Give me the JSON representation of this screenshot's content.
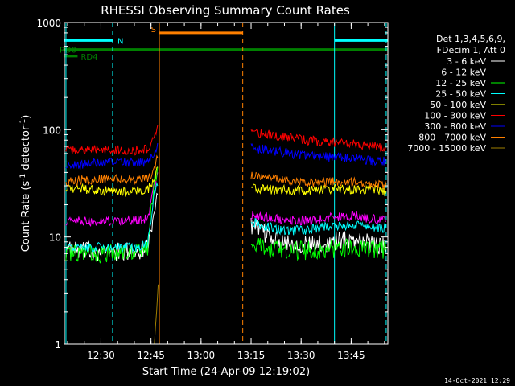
{
  "chart_data": {
    "type": "line",
    "title": "RHESSI Observing Summary Count Rates",
    "xlabel": "Start Time (24-Apr-09 12:19:02)",
    "ylabel_main": "Count Rate (s",
    "ylabel_sup1": "-1",
    "ylabel_mid": " detector",
    "ylabel_sup2": "-1",
    "ylabel_end": ")",
    "y_log": true,
    "ylim": [
      1,
      1000
    ],
    "y_ticks": [
      {
        "value": 1,
        "label": "1"
      },
      {
        "value": 10,
        "label": "10"
      },
      {
        "value": 100,
        "label": "100"
      },
      {
        "value": 1000,
        "label": "1000"
      }
    ],
    "xlim": [
      "12:19:02",
      "13:56:00"
    ],
    "x_ticks": [
      {
        "value": "12:30",
        "label": "12:30"
      },
      {
        "value": "12:45",
        "label": "12:45"
      },
      {
        "value": "13:00",
        "label": "13:00"
      },
      {
        "value": "13:15",
        "label": "13:15"
      },
      {
        "value": "13:30",
        "label": "13:30"
      },
      {
        "value": "13:45",
        "label": "13:45"
      }
    ],
    "legend_title": [
      "Det 1,3,4,5,6,9,",
      "FDecim 1, Att 0"
    ],
    "legend_position": "right",
    "series": [
      {
        "name": "3 - 6 keV",
        "color": "#ffffff",
        "segments": [
          {
            "x": [
              "12:19:30",
              "12:30:00",
              "12:40:00",
              "12:44:00",
              "12:46:00",
              "12:47:00"
            ],
            "y": [
              7.5,
              7.2,
              7.3,
              8.0,
              18,
              25
            ]
          },
          {
            "x": [
              "13:15:00",
              "13:18:00",
              "13:22:00",
              "13:27:00",
              "13:32:00",
              "13:36:00",
              "13:40:00",
              "13:45:00",
              "13:50:00",
              "13:55:30"
            ],
            "y": [
              13,
              11,
              9.8,
              8.8,
              8.4,
              8.5,
              9.2,
              9.5,
              9.0,
              8.0
            ]
          }
        ]
      },
      {
        "name": "6 - 12 keV",
        "color": "#ff00ff",
        "segments": [
          {
            "x": [
              "12:19:30",
              "12:30:00",
              "12:40:00",
              "12:44:00",
              "12:46:00",
              "12:47:00"
            ],
            "y": [
              14,
              14,
              14.2,
              15,
              30,
              40
            ]
          },
          {
            "x": [
              "13:15:00",
              "13:18:00",
              "13:22:00",
              "13:27:00",
              "13:32:00",
              "13:36:00",
              "13:40:00",
              "13:45:00",
              "13:50:00",
              "13:55:30"
            ],
            "y": [
              16,
              15.5,
              15,
              14.5,
              14.2,
              14.5,
              15.5,
              15.8,
              15,
              14
            ]
          }
        ]
      },
      {
        "name": "12 - 25 keV",
        "color": "#00ff00",
        "segments": [
          {
            "x": [
              "12:19:30",
              "12:30:00",
              "12:40:00",
              "12:44:00",
              "12:46:00",
              "12:47:00"
            ],
            "y": [
              7.0,
              7.0,
              7.1,
              8.0,
              35,
              45
            ]
          },
          {
            "x": [
              "13:15:00",
              "13:18:00",
              "13:22:00",
              "13:27:00",
              "13:32:00",
              "13:36:00",
              "13:40:00",
              "13:45:00",
              "13:50:00",
              "13:55:30"
            ],
            "y": [
              9.5,
              8.0,
              7.6,
              7.5,
              7.5,
              7.6,
              7.8,
              8.0,
              7.9,
              7.6
            ]
          }
        ]
      },
      {
        "name": "25 - 50 keV",
        "color": "#00ffff",
        "segments": [
          {
            "x": [
              "12:19:30",
              "12:30:00",
              "12:40:00",
              "12:44:00",
              "12:46:00",
              "12:47:00"
            ],
            "y": [
              8.0,
              8.0,
              8.0,
              8.5,
              25,
              30
            ]
          },
          {
            "x": [
              "13:15:00",
              "13:18:00",
              "13:22:00",
              "13:27:00",
              "13:32:00",
              "13:36:00",
              "13:40:00",
              "13:45:00",
              "13:50:00",
              "13:55:30"
            ],
            "y": [
              14,
              13,
              12,
              11.5,
              11.6,
              12.5,
              13,
              12.8,
              12.4,
              12.0
            ]
          }
        ]
      },
      {
        "name": "50 - 100 keV",
        "color": "#ffff00",
        "segments": [
          {
            "x": [
              "12:19:30",
              "12:30:00",
              "12:40:00",
              "12:44:00",
              "12:46:00",
              "12:47:00"
            ],
            "y": [
              29,
              27,
              26,
              27.5,
              35,
              45
            ]
          },
          {
            "x": [
              "13:15:00",
              "13:18:00",
              "13:22:00",
              "13:27:00",
              "13:32:00",
              "13:36:00",
              "13:40:00",
              "13:45:00",
              "13:50:00",
              "13:55:30"
            ],
            "y": [
              29,
              28,
              27.5,
              27,
              27,
              27.5,
              28,
              28,
              27.5,
              27
            ]
          }
        ]
      },
      {
        "name": "100 - 300 keV",
        "color": "#ff0000",
        "segments": [
          {
            "x": [
              "12:19:30",
              "12:30:00",
              "12:40:00",
              "12:44:00",
              "12:46:00",
              "12:47:00"
            ],
            "y": [
              65,
              65,
              64,
              66,
              80,
              110
            ]
          },
          {
            "x": [
              "13:15:00",
              "13:18:00",
              "13:22:00",
              "13:27:00",
              "13:32:00",
              "13:36:00",
              "13:40:00",
              "13:45:00",
              "13:50:00",
              "13:55:30"
            ],
            "y": [
              95,
              92,
              88,
              84,
              80,
              77,
              76,
              74,
              72,
              68
            ]
          }
        ]
      },
      {
        "name": "300 - 800 keV",
        "color": "#0000ff",
        "segments": [
          {
            "x": [
              "12:19:30",
              "12:30:00",
              "12:40:00",
              "12:44:00",
              "12:46:00",
              "12:47:00"
            ],
            "y": [
              45,
              50,
              49,
              50,
              60,
              75
            ]
          },
          {
            "x": [
              "13:15:00",
              "13:18:00",
              "13:22:00",
              "13:27:00",
              "13:32:00",
              "13:36:00",
              "13:40:00",
              "13:45:00",
              "13:50:00",
              "13:55:30"
            ],
            "y": [
              68,
              66,
              63,
              60,
              57,
              56,
              55,
              54,
              52,
              50
            ]
          }
        ]
      },
      {
        "name": "800 - 7000 keV",
        "color": "#ff8000",
        "segments": [
          {
            "x": [
              "12:19:30",
              "12:30:00",
              "12:40:00",
              "12:44:00",
              "12:46:00",
              "12:47:00"
            ],
            "y": [
              33,
              35,
              34,
              34.5,
              42,
              55
            ]
          },
          {
            "x": [
              "13:15:00",
              "13:18:00",
              "13:22:00",
              "13:27:00",
              "13:32:00",
              "13:36:00",
              "13:40:00",
              "13:45:00",
              "13:50:00",
              "13:55:30"
            ],
            "y": [
              38,
              36,
              34.5,
              33.5,
              32.5,
              32.5,
              33,
              32.5,
              31.5,
              30
            ]
          }
        ]
      },
      {
        "name": "7000 - 15000 keV",
        "color": "#a08000",
        "segments": [
          {
            "x": [
              "12:46:00",
              "12:46:40",
              "12:47:10"
            ],
            "y": [
              1.0,
              2.0,
              3.6
            ]
          }
        ]
      }
    ],
    "flag_bars": [
      {
        "label": "N",
        "color": "#00ffff",
        "y": 680,
        "segments": [
          [
            "12:19:02",
            "12:33:30"
          ],
          [
            "13:40:00",
            "13:56:00"
          ]
        ]
      },
      {
        "label": "S",
        "color": "#ff8000",
        "y": 800,
        "segments": [
          [
            "12:47:30",
            "13:12:30"
          ]
        ]
      },
      {
        "label": "RD0",
        "color": "#008000",
        "y": 560,
        "segments": [
          [
            "12:19:02",
            "13:56:00"
          ]
        ]
      },
      {
        "label": "RD4",
        "color": "#008000",
        "y": 485,
        "segments": [
          [
            "12:19:02",
            "12:23:00"
          ]
        ]
      }
    ],
    "vertical_markers": [
      {
        "x": "12:19:30",
        "color": "#00ffff",
        "style": "solid"
      },
      {
        "x": "12:33:30",
        "color": "#00ffff",
        "style": "dashed"
      },
      {
        "x": "12:47:30",
        "color": "#ff8000",
        "style": "solid"
      },
      {
        "x": "13:12:30",
        "color": "#ff8000",
        "style": "dashed"
      },
      {
        "x": "13:40:00",
        "color": "#00ffff",
        "style": "solid"
      },
      {
        "x": "13:55:30",
        "color": "#00ffff",
        "style": "dashed"
      }
    ],
    "timestamp": "14-Oct-2021 12:29"
  }
}
